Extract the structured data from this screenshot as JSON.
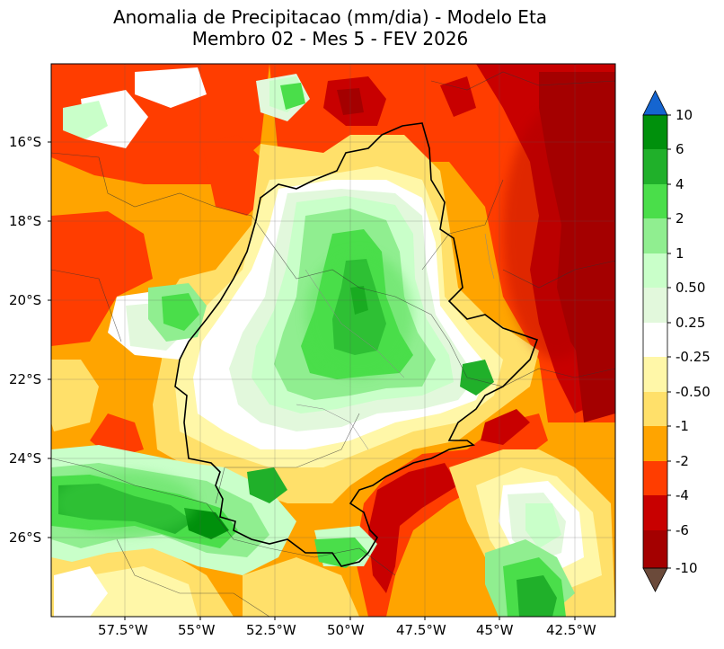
{
  "title": {
    "line1": "Anomalia de Precipitacao (mm/dia) - Modelo Eta",
    "line2": "Membro 02 - Mes 5 - FEV 2026"
  },
  "axes": {
    "lat_labels": [
      "16°S",
      "18°S",
      "20°S",
      "22°S",
      "24°S",
      "26°S"
    ],
    "lon_labels": [
      "57.5°W",
      "55°W",
      "52.5°W",
      "50°W",
      "47.5°W",
      "45°W",
      "42.5°W"
    ]
  },
  "colorbar": {
    "labels": [
      "10",
      "6",
      "4",
      "2",
      "1",
      "0.50",
      "0.25",
      "-0.25",
      "-0.50",
      "-1",
      "-2",
      "-4",
      "-6",
      "-10"
    ],
    "colors": [
      "#00900c",
      "#20b02a",
      "#4ade4a",
      "#90ee90",
      "#c9ffc9",
      "#e2f8dc",
      "#ffffff",
      "#fff7a8",
      "#ffe06a",
      "#ffa400",
      "#ff3d00",
      "#c80000",
      "#a40000"
    ],
    "over_color": "#1565d0",
    "under_color": "#6b4a3a"
  },
  "map": {
    "region": "Centro-Sul do Brasil",
    "lat_range": [
      -28,
      -14
    ],
    "lon_range": [
      -60,
      -41.5
    ]
  }
}
